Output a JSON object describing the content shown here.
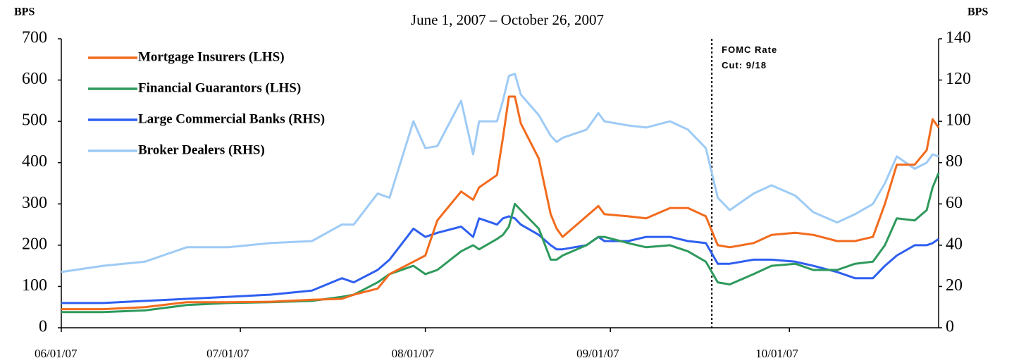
{
  "chart_data": {
    "type": "line",
    "subtitle": "June 1, 2007 – October 26, 2007",
    "y_label": "BPS",
    "y2_label": "BPS",
    "x": [
      "2007-06-01",
      "2007-06-08",
      "2007-06-15",
      "2007-06-22",
      "2007-06-29",
      "2007-07-06",
      "2007-07-13",
      "2007-07-18",
      "2007-07-20",
      "2007-07-24",
      "2007-07-26",
      "2007-07-30",
      "2007-08-01",
      "2007-08-03",
      "2007-08-07",
      "2007-08-09",
      "2007-08-10",
      "2007-08-13",
      "2007-08-14",
      "2007-08-15",
      "2007-08-16",
      "2007-08-17",
      "2007-08-20",
      "2007-08-22",
      "2007-08-23",
      "2007-08-24",
      "2007-08-28",
      "2007-08-30",
      "2007-08-31",
      "2007-09-04",
      "2007-09-07",
      "2007-09-11",
      "2007-09-14",
      "2007-09-17",
      "2007-09-19",
      "2007-09-21",
      "2007-09-25",
      "2007-09-28",
      "2007-10-02",
      "2007-10-05",
      "2007-10-09",
      "2007-10-12",
      "2007-10-15",
      "2007-10-17",
      "2007-10-19",
      "2007-10-22",
      "2007-10-24",
      "2007-10-25",
      "2007-10-26"
    ],
    "xlim": [
      "2007-06-01",
      "2007-10-26"
    ],
    "xticks": [
      {
        "value": "2007-06-01",
        "label": "06/01/07"
      },
      {
        "value": "2007-07-01",
        "label": "07/01/07"
      },
      {
        "value": "2007-08-01",
        "label": "08/01/07"
      },
      {
        "value": "2007-09-01",
        "label": "09/01/07"
      },
      {
        "value": "2007-10-01",
        "label": "10/01/07"
      }
    ],
    "ylim": [
      0,
      700
    ],
    "yticks": [
      0,
      100,
      200,
      300,
      400,
      500,
      600,
      700
    ],
    "y2lim": [
      0,
      140
    ],
    "y2ticks": [
      0,
      20,
      40,
      60,
      80,
      100,
      120,
      140
    ],
    "legend": "upper left",
    "series": [
      {
        "name": "Mortgage Insurers (LHS)",
        "color": "#f26b1d",
        "values": [
          45,
          45,
          50,
          62,
          62,
          63,
          68,
          70,
          80,
          95,
          130,
          160,
          175,
          260,
          330,
          310,
          340,
          370,
          460,
          560,
          560,
          495,
          410,
          275,
          240,
          220,
          270,
          295,
          275,
          270,
          265,
          290,
          290,
          270,
          200,
          195,
          205,
          225,
          230,
          225,
          210,
          210,
          220,
          300,
          395,
          395,
          430,
          505,
          485
        ]
      },
      {
        "name": "Financial Guarantors (LHS)",
        "color": "#2e9a5c",
        "values": [
          38,
          38,
          42,
          55,
          60,
          62,
          65,
          75,
          80,
          110,
          130,
          150,
          130,
          140,
          185,
          200,
          190,
          215,
          225,
          245,
          300,
          285,
          240,
          165,
          165,
          175,
          200,
          220,
          220,
          205,
          195,
          200,
          185,
          160,
          110,
          105,
          130,
          150,
          155,
          140,
          140,
          155,
          160,
          200,
          265,
          260,
          285,
          340,
          375
        ]
      },
      {
        "name": "Large Commercial Banks (RHS)",
        "color": "#2e5ff0",
        "axis": "y2",
        "values": [
          12,
          12,
          13,
          14,
          15,
          16,
          18,
          24,
          22,
          28,
          33,
          48,
          44,
          46,
          49,
          44,
          53,
          50,
          53,
          54,
          53,
          50,
          45,
          40,
          38,
          38,
          40,
          44,
          42,
          42,
          44,
          44,
          42,
          41,
          31,
          31,
          33,
          33,
          32,
          30,
          27,
          24,
          24,
          30,
          35,
          40,
          40,
          41,
          43
        ]
      },
      {
        "name": "Broker Dealers (RHS)",
        "color": "#9ecbf5",
        "axis": "y2",
        "values": [
          27,
          30,
          32,
          39,
          39,
          41,
          42,
          50,
          50,
          65,
          63,
          100,
          87,
          88,
          110,
          84,
          100,
          100,
          110,
          122,
          123,
          113,
          103,
          93,
          90,
          92,
          96,
          104,
          100,
          98,
          97,
          100,
          96,
          87,
          63,
          57,
          65,
          69,
          64,
          56,
          51,
          55,
          60,
          70,
          83,
          77,
          80,
          84,
          83
        ]
      }
    ],
    "annotation": {
      "x": "2007-09-18",
      "lines": [
        "FOMC Rate",
        "Cut: 9/18"
      ]
    }
  }
}
